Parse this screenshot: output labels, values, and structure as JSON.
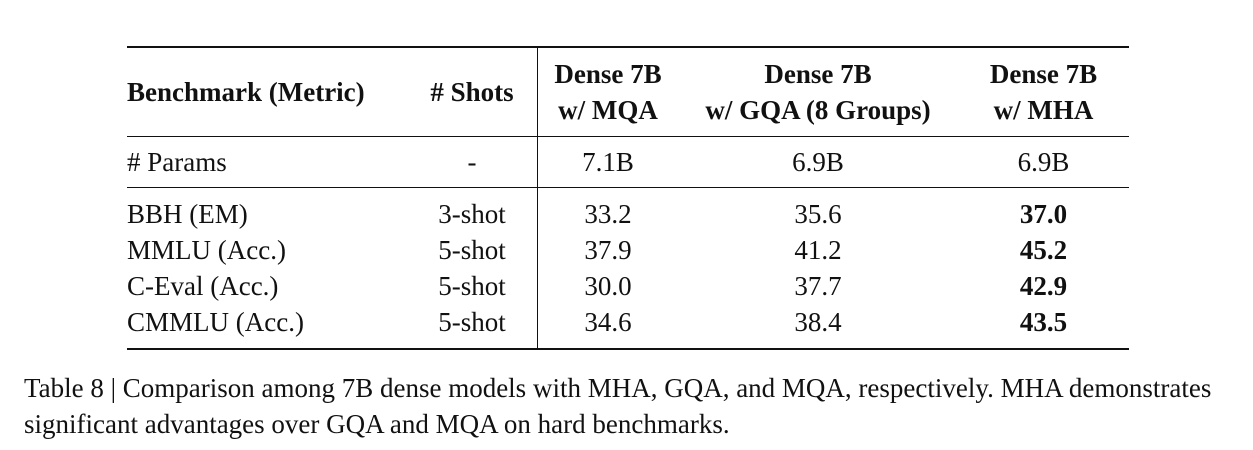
{
  "table": {
    "headers": {
      "benchmark": "Benchmark (Metric)",
      "shots": "# Shots",
      "mqa_line1": "Dense 7B",
      "mqa_line2": "w/ MQA",
      "gqa_line1": "Dense 7B",
      "gqa_line2": "w/ GQA (8 Groups)",
      "mha_line1": "Dense 7B",
      "mha_line2": "w/ MHA"
    },
    "params_row": {
      "label": "# Params",
      "shots": "-",
      "mqa": "7.1B",
      "gqa": "6.9B",
      "mha": "6.9B"
    },
    "rows": [
      {
        "benchmark": "BBH (EM)",
        "shots": "3-shot",
        "mqa": "33.2",
        "gqa": "35.6",
        "mha": "37.0"
      },
      {
        "benchmark": "MMLU (Acc.)",
        "shots": "5-shot",
        "mqa": "37.9",
        "gqa": "41.2",
        "mha": "45.2"
      },
      {
        "benchmark": "C-Eval (Acc.)",
        "shots": "5-shot",
        "mqa": "30.0",
        "gqa": "37.7",
        "mha": "42.9"
      },
      {
        "benchmark": "CMMLU (Acc.)",
        "shots": "5-shot",
        "mqa": "34.6",
        "gqa": "38.4",
        "mha": "43.5"
      }
    ]
  },
  "caption": "Table 8 | Comparison among 7B dense models with MHA, GQA, and MQA, respectively. MHA demonstrates significant advantages over GQA and MQA on hard benchmarks."
}
